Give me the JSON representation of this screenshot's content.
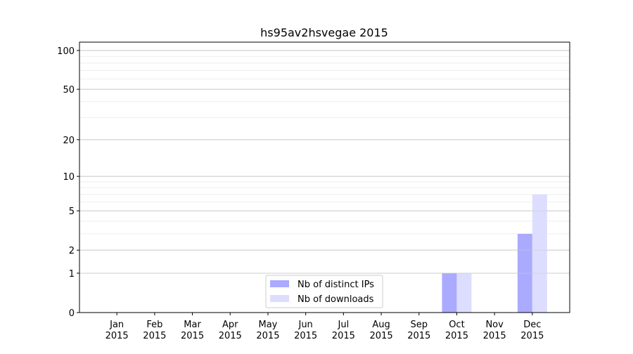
{
  "chart_data": {
    "type": "bar",
    "title": "hs95av2hsvegae 2015",
    "xlabel": "",
    "ylabel": "",
    "yscale": "symlog (log of 1+y)",
    "ylim": [
      0,
      116
    ],
    "yticks": [
      0,
      1,
      2,
      5,
      10,
      20,
      50,
      100
    ],
    "yminor": [
      3,
      4,
      6,
      7,
      8,
      9,
      30,
      40,
      60,
      70,
      80,
      90
    ],
    "grid": true,
    "legend_position": "lower-center",
    "categories": [
      "Jan\n2015",
      "Feb\n2015",
      "Mar\n2015",
      "Apr\n2015",
      "May\n2015",
      "Jun\n2015",
      "Jul\n2015",
      "Aug\n2015",
      "Sep\n2015",
      "Oct\n2015",
      "Nov\n2015",
      "Dec\n2015"
    ],
    "series": [
      {
        "name": "Nb of distinct IPs",
        "color": "#aaaaff",
        "values": [
          0,
          0,
          0,
          0,
          0,
          0,
          0,
          0,
          0,
          1,
          0,
          3
        ]
      },
      {
        "name": "Nb of downloads",
        "color": "#ddddff",
        "values": [
          0,
          0,
          0,
          0,
          0,
          0,
          0,
          0,
          0,
          1,
          0,
          7
        ]
      }
    ]
  }
}
